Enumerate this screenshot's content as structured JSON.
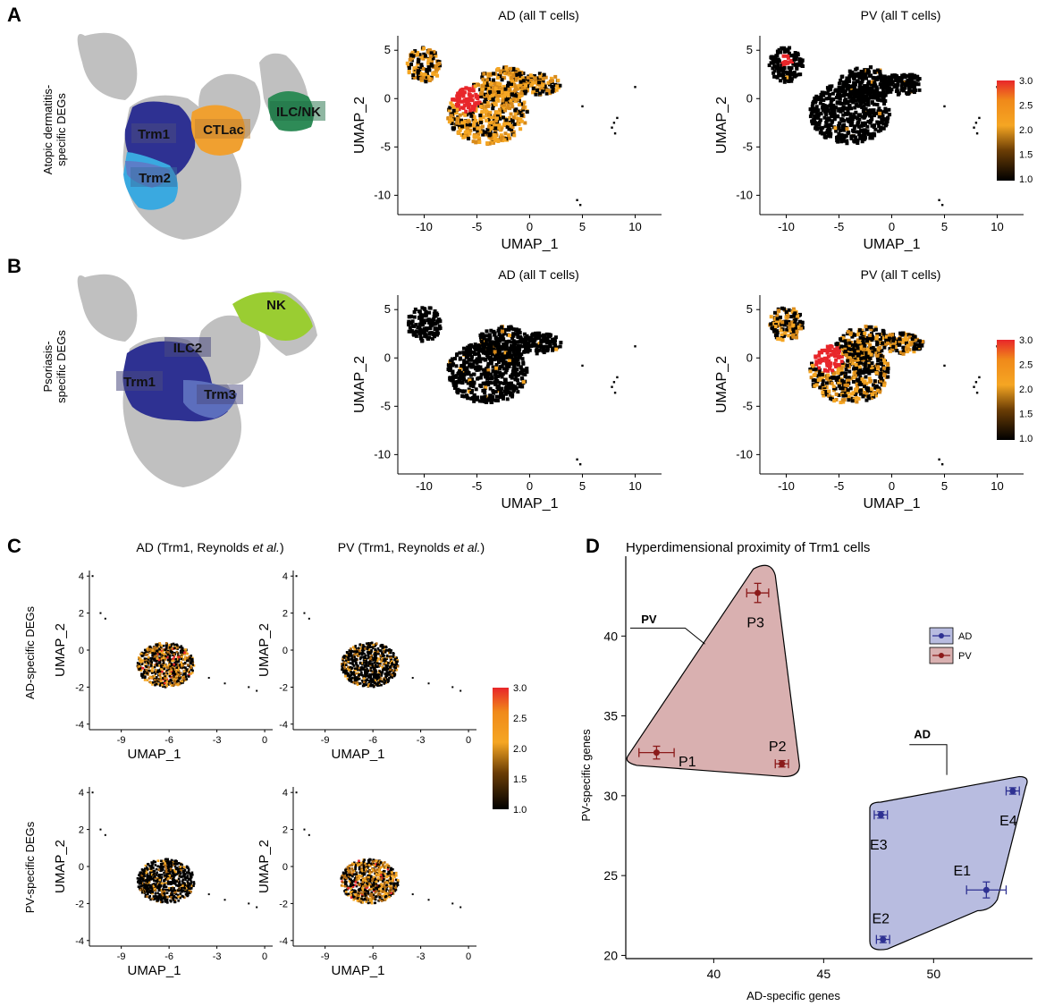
{
  "panels": {
    "A": {
      "letter": "A",
      "row_label": [
        "Atopic dermatitis-",
        "specific DEGs"
      ],
      "cluster_labels": [
        "Trm1",
        "CTLac",
        "ILC/NK",
        "Trm2"
      ],
      "subplots": [
        {
          "title": "AD (all T cells)"
        },
        {
          "title": "PV (all T cells)"
        }
      ]
    },
    "B": {
      "letter": "B",
      "row_label": [
        "Psoriasis-",
        "specific DEGs"
      ],
      "cluster_labels": [
        "NK",
        "ILC2",
        "Trm1",
        "Trm3"
      ],
      "subplots": [
        {
          "title": "AD (all T cells)"
        },
        {
          "title": "PV (all T cells)"
        }
      ]
    },
    "C": {
      "letter": "C",
      "col_titles": [
        {
          "prefix": "AD (Trm1, Reynolds ",
          "italic": "et al.",
          "suffix": ")"
        },
        {
          "prefix": "PV (Trm1, Reynolds ",
          "italic": "et al.",
          "suffix": ")"
        }
      ],
      "row_labels": [
        "AD-specific DEGs",
        "PV-specific DEGs"
      ]
    },
    "D": {
      "letter": "D",
      "title": "Hyperdimensional proximity of Trm1 cells"
    }
  },
  "umap_axes": {
    "xlabel": "UMAP_1",
    "ylabel": "UMAP_2",
    "x_ticks": [
      "-10",
      "-5",
      "0",
      "5",
      "10"
    ],
    "y_ticks": [
      "5",
      "0",
      "-5",
      "-10"
    ],
    "x_tick_values": [
      -10,
      -5,
      0,
      5,
      10
    ],
    "y_tick_values": [
      5,
      0,
      -5,
      -10
    ]
  },
  "c_axes": {
    "xlabel": "UMAP_1",
    "ylabel": "UMAP_2",
    "x_ticks": [
      "-9",
      "-6",
      "-3",
      "0"
    ],
    "y_ticks": [
      "4",
      "2",
      "0",
      "-2",
      "-4"
    ],
    "x_tick_values": [
      -9,
      -6,
      -3,
      0
    ],
    "y_tick_values": [
      4,
      2,
      0,
      -2,
      -4
    ]
  },
  "colorbar": {
    "ticks": [
      "3.0",
      "2.5",
      "2.0",
      "1.5",
      "1.0"
    ],
    "min": 1.0,
    "max": 3.0,
    "colors": [
      "#000000",
      "#7a4a0a",
      "#f5a623",
      "#f08a1a",
      "#e8262a"
    ]
  },
  "chart_data": {
    "type": "scatter",
    "title": "Hyperdimensional proximity of Trm1 cells",
    "xlabel": "AD-specific genes",
    "ylabel": "PV-specific genes",
    "xlim": [
      36,
      54.5
    ],
    "ylim": [
      19.8,
      45
    ],
    "x_ticks": [
      "40",
      "45",
      "50"
    ],
    "y_ticks": [
      "20",
      "25",
      "30",
      "35",
      "40"
    ],
    "x_tick_values": [
      40,
      45,
      50
    ],
    "y_tick_values": [
      20,
      25,
      30,
      35,
      40
    ],
    "grid": false,
    "legend_placement": "right",
    "series": [
      {
        "name": "AD",
        "color": "#2e3192",
        "hull_fill": "#b8bce0",
        "hull_label": "AD",
        "points": [
          {
            "label": "E1",
            "x": 52.4,
            "y": 24.1,
            "xerr": 0.9,
            "yerr": 0.5
          },
          {
            "label": "E2",
            "x": 47.7,
            "y": 21.0,
            "xerr": 0.3,
            "yerr": 0.2
          },
          {
            "label": "E3",
            "x": 47.6,
            "y": 28.8,
            "xerr": 0.3,
            "yerr": 0.2
          },
          {
            "label": "E4",
            "x": 53.6,
            "y": 30.3,
            "xerr": 0.3,
            "yerr": 0.2
          }
        ]
      },
      {
        "name": "PV",
        "color": "#8b1a1a",
        "hull_fill": "#d9b0b0",
        "hull_label": "PV",
        "points": [
          {
            "label": "P1",
            "x": 37.4,
            "y": 32.7,
            "xerr": 0.8,
            "yerr": 0.4
          },
          {
            "label": "P2",
            "x": 43.1,
            "y": 32.0,
            "xerr": 0.3,
            "yerr": 0.2
          },
          {
            "label": "P3",
            "x": 42.0,
            "y": 42.7,
            "xerr": 0.5,
            "yerr": 0.6
          }
        ]
      }
    ]
  }
}
